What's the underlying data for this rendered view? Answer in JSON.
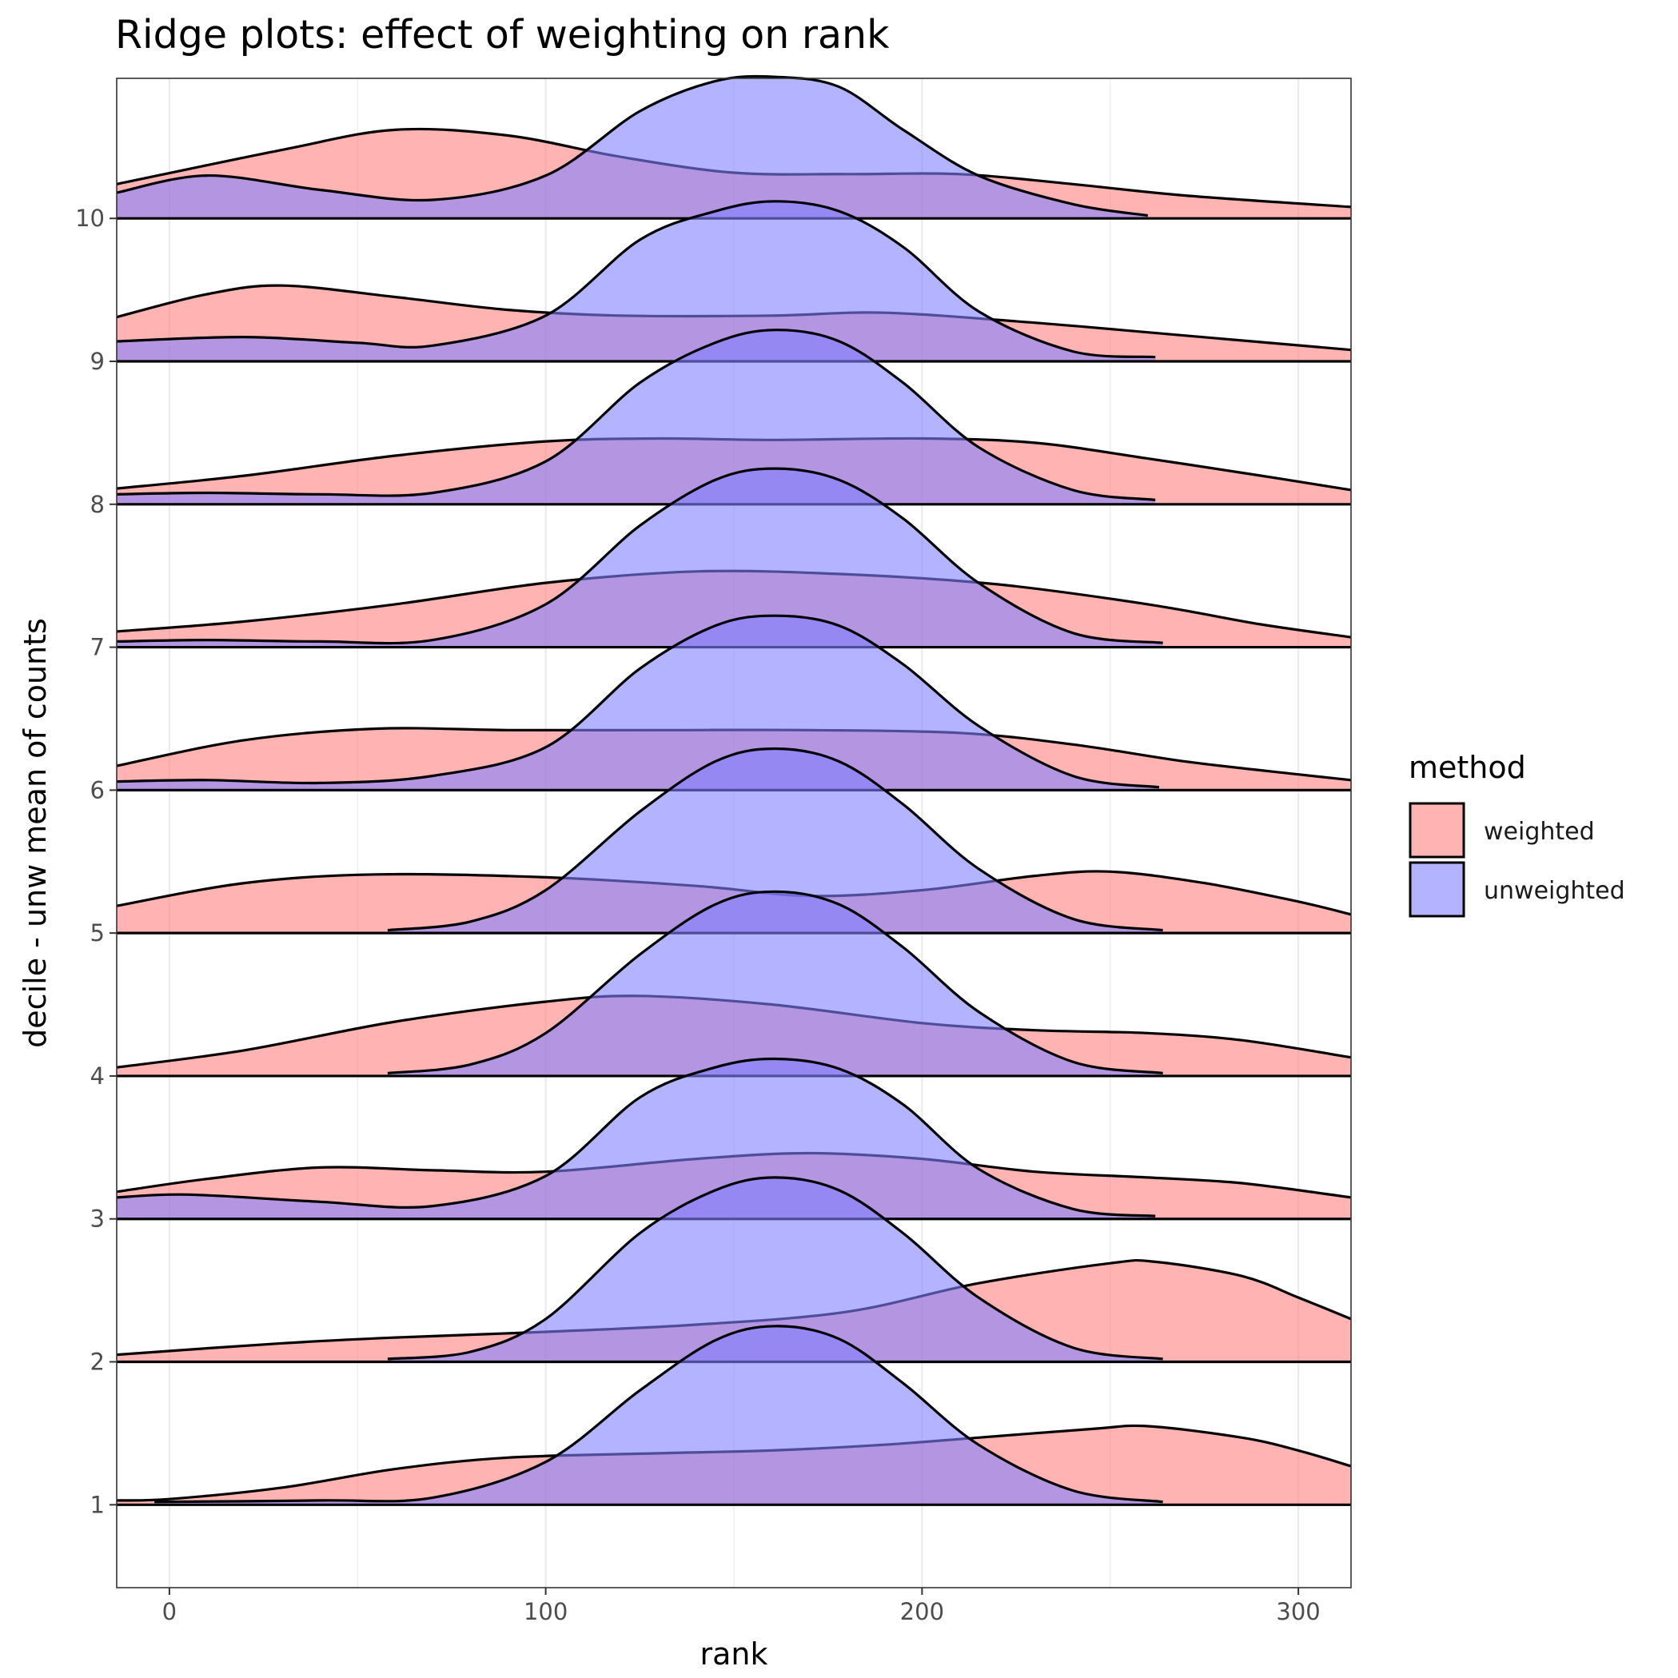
{
  "chart_data": {
    "type": "ridgeline",
    "title": "Ridge plots: effect of weighting on rank",
    "xlabel": "rank",
    "ylabel": "decile - unw mean of counts",
    "xlim": [
      -14,
      314
    ],
    "ylim": [
      0.42,
      10.98
    ],
    "x_ticks": [
      0,
      100,
      200,
      300
    ],
    "y_ticks": [
      1,
      2,
      3,
      4,
      5,
      6,
      7,
      8,
      9,
      10
    ],
    "grid": true,
    "legend": {
      "title": "method",
      "position": "right",
      "entries": [
        {
          "label": "weighted",
          "color": "#ff8080"
        },
        {
          "label": "unweighted",
          "color": "#8080ff"
        }
      ]
    },
    "ridges": [
      {
        "category": 1,
        "weighted": [
          [
            -14,
            1.03
          ],
          [
            0,
            1.04
          ],
          [
            30,
            1.12
          ],
          [
            60,
            1.25
          ],
          [
            90,
            1.33
          ],
          [
            130,
            1.36
          ],
          [
            160,
            1.38
          ],
          [
            190,
            1.42
          ],
          [
            215,
            1.47
          ],
          [
            245,
            1.53
          ],
          [
            260,
            1.55
          ],
          [
            285,
            1.47
          ],
          [
            300,
            1.38
          ],
          [
            314,
            1.27
          ]
        ],
        "unweighted": [
          [
            -4,
            1.02
          ],
          [
            40,
            1.03
          ],
          [
            70,
            1.05
          ],
          [
            100,
            1.3
          ],
          [
            125,
            1.8
          ],
          [
            145,
            2.15
          ],
          [
            161,
            2.25
          ],
          [
            178,
            2.16
          ],
          [
            195,
            1.85
          ],
          [
            215,
            1.42
          ],
          [
            240,
            1.1
          ],
          [
            264,
            1.02
          ]
        ]
      },
      {
        "category": 2,
        "weighted": [
          [
            -14,
            2.05
          ],
          [
            30,
            2.13
          ],
          [
            60,
            2.17
          ],
          [
            100,
            2.21
          ],
          [
            140,
            2.26
          ],
          [
            180,
            2.35
          ],
          [
            215,
            2.55
          ],
          [
            250,
            2.69
          ],
          [
            262,
            2.7
          ],
          [
            285,
            2.6
          ],
          [
            300,
            2.45
          ],
          [
            314,
            2.3
          ]
        ],
        "unweighted": [
          [
            58,
            2.02
          ],
          [
            80,
            2.07
          ],
          [
            100,
            2.3
          ],
          [
            125,
            2.9
          ],
          [
            145,
            3.2
          ],
          [
            161,
            3.29
          ],
          [
            178,
            3.2
          ],
          [
            195,
            2.9
          ],
          [
            215,
            2.45
          ],
          [
            240,
            2.1
          ],
          [
            264,
            2.02
          ]
        ]
      },
      {
        "category": 3,
        "weighted": [
          [
            -14,
            3.19
          ],
          [
            10,
            3.28
          ],
          [
            40,
            3.36
          ],
          [
            70,
            3.34
          ],
          [
            100,
            3.33
          ],
          [
            140,
            3.42
          ],
          [
            170,
            3.46
          ],
          [
            200,
            3.42
          ],
          [
            230,
            3.33
          ],
          [
            260,
            3.29
          ],
          [
            285,
            3.25
          ],
          [
            314,
            3.15
          ]
        ],
        "unweighted": [
          [
            -14,
            3.15
          ],
          [
            5,
            3.17
          ],
          [
            40,
            3.12
          ],
          [
            70,
            3.09
          ],
          [
            100,
            3.3
          ],
          [
            125,
            3.85
          ],
          [
            145,
            4.06
          ],
          [
            161,
            4.12
          ],
          [
            178,
            4.05
          ],
          [
            195,
            3.8
          ],
          [
            215,
            3.35
          ],
          [
            240,
            3.07
          ],
          [
            262,
            3.02
          ]
        ]
      },
      {
        "category": 4,
        "weighted": [
          [
            -14,
            4.06
          ],
          [
            20,
            4.18
          ],
          [
            60,
            4.38
          ],
          [
            100,
            4.52
          ],
          [
            125,
            4.56
          ],
          [
            160,
            4.5
          ],
          [
            200,
            4.37
          ],
          [
            230,
            4.32
          ],
          [
            260,
            4.3
          ],
          [
            285,
            4.25
          ],
          [
            314,
            4.13
          ]
        ],
        "unweighted": [
          [
            58,
            4.02
          ],
          [
            80,
            4.08
          ],
          [
            100,
            4.3
          ],
          [
            125,
            4.85
          ],
          [
            145,
            5.2
          ],
          [
            161,
            5.29
          ],
          [
            178,
            5.2
          ],
          [
            195,
            4.9
          ],
          [
            215,
            4.45
          ],
          [
            240,
            4.1
          ],
          [
            264,
            4.02
          ]
        ]
      },
      {
        "category": 5,
        "weighted": [
          [
            -14,
            5.19
          ],
          [
            20,
            5.35
          ],
          [
            55,
            5.41
          ],
          [
            100,
            5.39
          ],
          [
            140,
            5.33
          ],
          [
            170,
            5.26
          ],
          [
            200,
            5.3
          ],
          [
            230,
            5.4
          ],
          [
            250,
            5.43
          ],
          [
            275,
            5.35
          ],
          [
            300,
            5.22
          ],
          [
            314,
            5.13
          ]
        ],
        "unweighted": [
          [
            58,
            5.02
          ],
          [
            80,
            5.08
          ],
          [
            100,
            5.3
          ],
          [
            125,
            5.85
          ],
          [
            145,
            6.2
          ],
          [
            161,
            6.29
          ],
          [
            178,
            6.2
          ],
          [
            195,
            5.9
          ],
          [
            215,
            5.45
          ],
          [
            240,
            5.1
          ],
          [
            264,
            5.02
          ]
        ]
      },
      {
        "category": 6,
        "weighted": [
          [
            -14,
            6.17
          ],
          [
            20,
            6.35
          ],
          [
            55,
            6.43
          ],
          [
            90,
            6.42
          ],
          [
            130,
            6.42
          ],
          [
            170,
            6.42
          ],
          [
            210,
            6.4
          ],
          [
            240,
            6.32
          ],
          [
            270,
            6.2
          ],
          [
            300,
            6.11
          ],
          [
            314,
            6.07
          ]
        ],
        "unweighted": [
          [
            -14,
            6.06
          ],
          [
            10,
            6.07
          ],
          [
            40,
            6.05
          ],
          [
            70,
            6.1
          ],
          [
            100,
            6.3
          ],
          [
            125,
            6.85
          ],
          [
            145,
            7.15
          ],
          [
            161,
            7.22
          ],
          [
            178,
            7.15
          ],
          [
            195,
            6.88
          ],
          [
            215,
            6.45
          ],
          [
            240,
            6.1
          ],
          [
            263,
            6.02
          ]
        ]
      },
      {
        "category": 7,
        "weighted": [
          [
            -14,
            7.11
          ],
          [
            20,
            7.18
          ],
          [
            60,
            7.3
          ],
          [
            100,
            7.45
          ],
          [
            140,
            7.53
          ],
          [
            180,
            7.51
          ],
          [
            220,
            7.44
          ],
          [
            260,
            7.3
          ],
          [
            290,
            7.16
          ],
          [
            314,
            7.07
          ]
        ],
        "unweighted": [
          [
            -14,
            7.04
          ],
          [
            10,
            7.05
          ],
          [
            40,
            7.04
          ],
          [
            70,
            7.05
          ],
          [
            100,
            7.3
          ],
          [
            125,
            7.85
          ],
          [
            145,
            8.17
          ],
          [
            161,
            8.25
          ],
          [
            178,
            8.17
          ],
          [
            195,
            7.9
          ],
          [
            215,
            7.45
          ],
          [
            240,
            7.1
          ],
          [
            264,
            7.03
          ]
        ]
      },
      {
        "category": 8,
        "weighted": [
          [
            -14,
            8.11
          ],
          [
            20,
            8.2
          ],
          [
            60,
            8.34
          ],
          [
            100,
            8.44
          ],
          [
            130,
            8.46
          ],
          [
            160,
            8.45
          ],
          [
            200,
            8.46
          ],
          [
            230,
            8.43
          ],
          [
            260,
            8.32
          ],
          [
            290,
            8.2
          ],
          [
            314,
            8.1
          ]
        ],
        "unweighted": [
          [
            -14,
            8.07
          ],
          [
            10,
            8.08
          ],
          [
            40,
            8.07
          ],
          [
            70,
            8.08
          ],
          [
            100,
            8.3
          ],
          [
            125,
            8.85
          ],
          [
            145,
            9.13
          ],
          [
            161,
            9.22
          ],
          [
            178,
            9.14
          ],
          [
            195,
            8.85
          ],
          [
            215,
            8.4
          ],
          [
            240,
            8.1
          ],
          [
            262,
            8.03
          ]
        ]
      },
      {
        "category": 9,
        "weighted": [
          [
            -14,
            9.31
          ],
          [
            10,
            9.47
          ],
          [
            30,
            9.53
          ],
          [
            60,
            9.45
          ],
          [
            90,
            9.36
          ],
          [
            120,
            9.32
          ],
          [
            160,
            9.32
          ],
          [
            190,
            9.34
          ],
          [
            230,
            9.27
          ],
          [
            270,
            9.18
          ],
          [
            314,
            9.08
          ]
        ],
        "unweighted": [
          [
            -14,
            9.14
          ],
          [
            20,
            9.17
          ],
          [
            50,
            9.13
          ],
          [
            70,
            9.11
          ],
          [
            100,
            9.32
          ],
          [
            125,
            9.85
          ],
          [
            145,
            10.05
          ],
          [
            161,
            10.12
          ],
          [
            178,
            10.05
          ],
          [
            195,
            9.8
          ],
          [
            215,
            9.35
          ],
          [
            240,
            9.07
          ],
          [
            262,
            9.03
          ]
        ]
      },
      {
        "category": 10,
        "weighted": [
          [
            -14,
            10.24
          ],
          [
            30,
            10.48
          ],
          [
            60,
            10.62
          ],
          [
            90,
            10.58
          ],
          [
            120,
            10.43
          ],
          [
            150,
            10.32
          ],
          [
            180,
            10.31
          ],
          [
            210,
            10.31
          ],
          [
            240,
            10.24
          ],
          [
            270,
            10.16
          ],
          [
            314,
            10.08
          ]
        ],
        "unweighted": [
          [
            -14,
            10.18
          ],
          [
            10,
            10.3
          ],
          [
            40,
            10.2
          ],
          [
            70,
            10.13
          ],
          [
            100,
            10.3
          ],
          [
            125,
            10.75
          ],
          [
            145,
            10.96
          ],
          [
            161,
            10.99
          ],
          [
            178,
            10.92
          ],
          [
            195,
            10.62
          ],
          [
            215,
            10.3
          ],
          [
            240,
            10.1
          ],
          [
            260,
            10.02
          ]
        ]
      }
    ]
  }
}
